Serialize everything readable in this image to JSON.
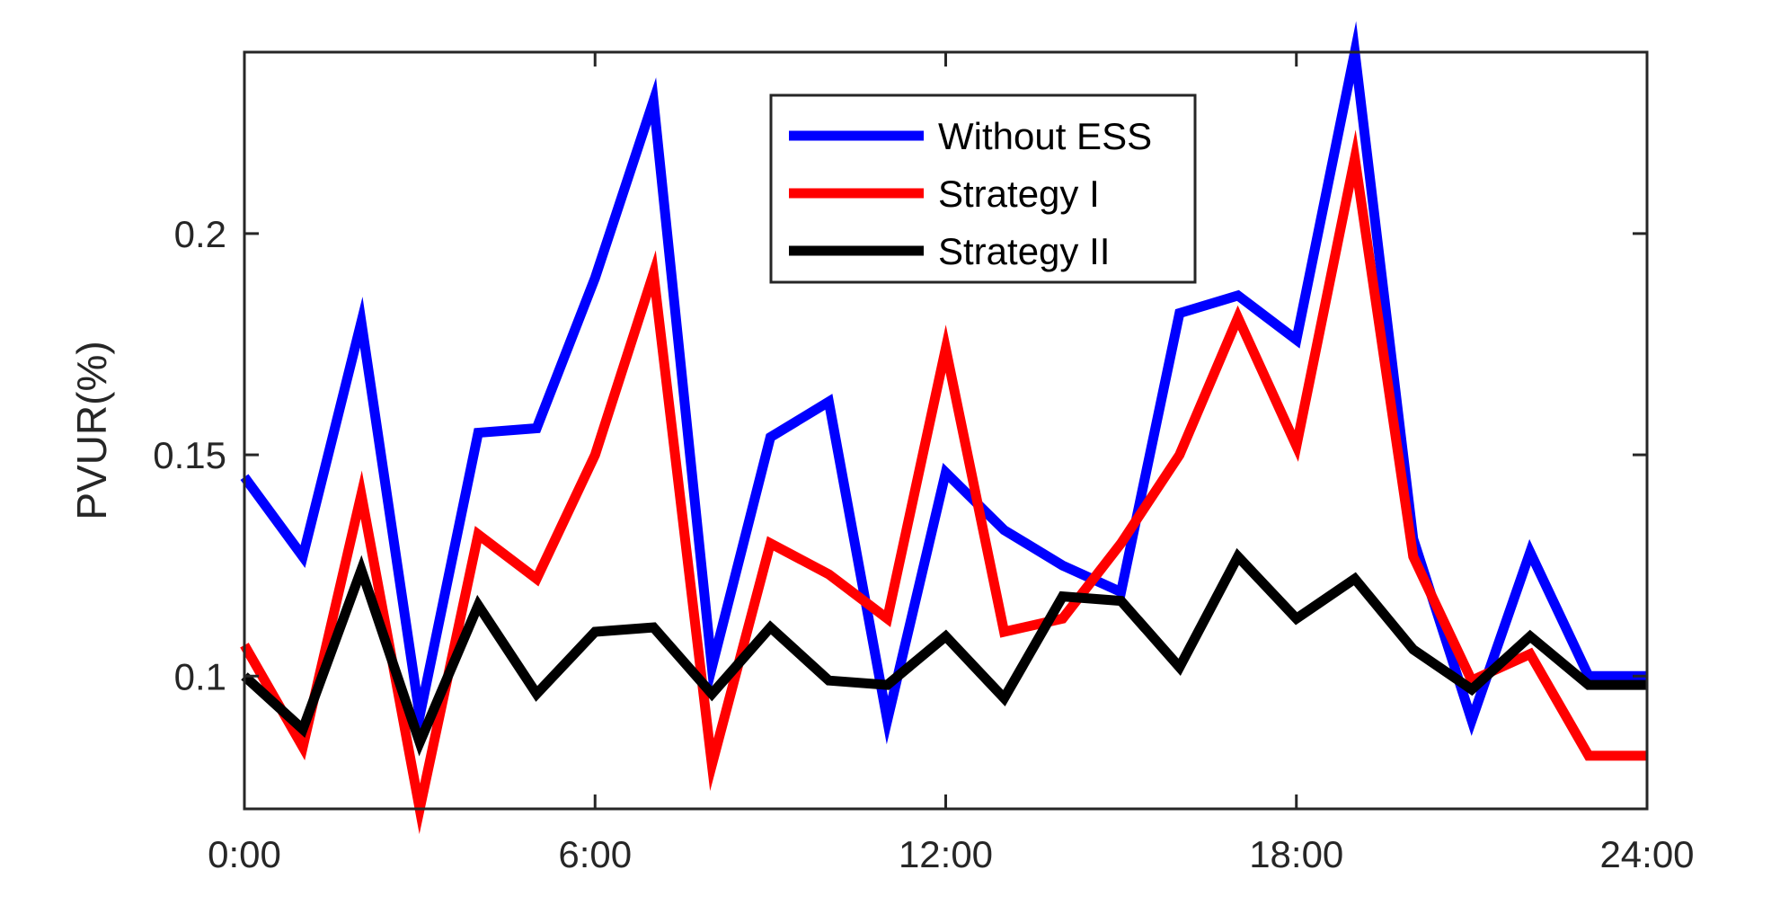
{
  "chart_data": {
    "type": "line",
    "ylabel": "PVUR(%)",
    "xlabel": "",
    "xlim": [
      0,
      24
    ],
    "ylim": [
      0.07,
      0.241
    ],
    "xticks": [
      0,
      6,
      12,
      18,
      24
    ],
    "xtick_labels": [
      "0:00",
      "6:00",
      "12:00",
      "18:00",
      "24:00"
    ],
    "yticks": [
      0.1,
      0.15,
      0.2
    ],
    "ytick_labels": [
      "0.1",
      "0.15",
      "0.2"
    ],
    "grid": false,
    "legend_position": "top-center",
    "x": [
      0,
      1,
      2,
      3,
      4,
      5,
      6,
      7,
      8,
      9,
      10,
      11,
      12,
      13,
      14,
      15,
      16,
      17,
      18,
      19,
      20,
      21,
      22,
      23,
      24
    ],
    "series": [
      {
        "name": "Without ESS",
        "color": "#0000ff",
        "values": [
          0.145,
          0.127,
          0.18,
          0.091,
          0.155,
          0.156,
          0.19,
          0.23,
          0.102,
          0.154,
          0.162,
          0.09,
          0.146,
          0.133,
          0.125,
          0.119,
          0.182,
          0.186,
          0.176,
          0.241,
          0.131,
          0.09,
          0.128,
          0.1,
          0.1
        ]
      },
      {
        "name": "Strategy I",
        "color": "#ff0000",
        "values": [
          0.107,
          0.084,
          0.141,
          0.07,
          0.132,
          0.122,
          0.15,
          0.191,
          0.08,
          0.13,
          0.123,
          0.113,
          0.174,
          0.11,
          0.113,
          0.13,
          0.15,
          0.181,
          0.152,
          0.217,
          0.127,
          0.099,
          0.105,
          0.082,
          0.082
        ]
      },
      {
        "name": "Strategy II",
        "color": "#000000",
        "values": [
          0.1,
          0.088,
          0.124,
          0.085,
          0.116,
          0.096,
          0.11,
          0.111,
          0.096,
          0.111,
          0.099,
          0.098,
          0.109,
          0.095,
          0.118,
          0.117,
          0.102,
          0.127,
          0.113,
          0.122,
          0.106,
          0.097,
          0.109,
          0.098,
          0.098
        ]
      }
    ]
  }
}
